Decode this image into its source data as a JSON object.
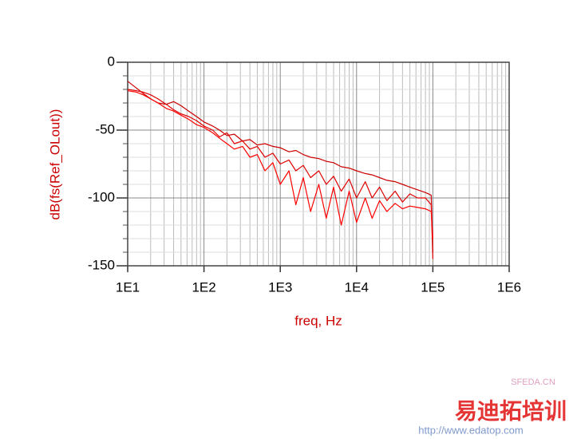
{
  "chart_data": {
    "type": "line",
    "xlabel": "freq, Hz",
    "ylabel": "dB(fs(Ref_OLout))",
    "xscale": "log",
    "grid": true,
    "xlim": [
      10,
      1000000
    ],
    "xticks": [
      {
        "value": 10,
        "label": "1E1"
      },
      {
        "value": 100,
        "label": "1E2"
      },
      {
        "value": 1000,
        "label": "1E3"
      },
      {
        "value": 10000,
        "label": "1E4"
      },
      {
        "value": 100000,
        "label": "1E5"
      },
      {
        "value": 1000000,
        "label": "1E6"
      }
    ],
    "xminorticks": [
      20,
      30,
      40,
      50,
      60,
      70,
      80,
      90,
      200,
      300,
      400,
      500,
      600,
      700,
      800,
      900,
      2000,
      3000,
      4000,
      5000,
      6000,
      7000,
      8000,
      9000,
      20000,
      30000,
      40000,
      50000,
      60000,
      70000,
      80000,
      90000,
      200000,
      300000,
      400000,
      500000,
      600000,
      700000,
      800000,
      900000
    ],
    "ylim": [
      -150,
      0
    ],
    "yticks": [
      0,
      -50,
      -100,
      -150
    ],
    "yminorticks": [
      -10,
      -20,
      -30,
      -40,
      -60,
      -70,
      -80,
      -90,
      -110,
      -120,
      -130,
      -140
    ],
    "x": [
      10,
      13,
      16,
      20,
      25,
      32,
      40,
      50,
      63,
      80,
      100,
      130,
      160,
      200,
      250,
      320,
      400,
      500,
      630,
      800,
      1000,
      1300,
      1600,
      2000,
      2500,
      3200,
      4000,
      5000,
      6300,
      8000,
      10000,
      13000,
      16000,
      20000,
      25000,
      32000,
      40000,
      50000,
      63000,
      80000,
      95000,
      100000
    ],
    "series": [
      {
        "color": "#cc0000",
        "values": [
          -14,
          -19,
          -23,
          -27,
          -30,
          -31,
          -29,
          -32,
          -36,
          -40,
          -44,
          -47,
          -50,
          -54,
          -53,
          -58,
          -57,
          -61,
          -60,
          -62,
          -63,
          -66,
          -65,
          -68,
          -70,
          -71,
          -73,
          -74,
          -77,
          -78,
          -80,
          -82,
          -83,
          -85,
          -87,
          -88,
          -90,
          -92,
          -94,
          -96,
          -98,
          -140
        ]
      },
      {
        "color": "#e00000",
        "values": [
          -20,
          -21,
          -22,
          -24,
          -27,
          -31,
          -35,
          -38,
          -40,
          -43,
          -47,
          -50,
          -55,
          -52,
          -60,
          -58,
          -64,
          -62,
          -70,
          -67,
          -75,
          -72,
          -80,
          -76,
          -85,
          -80,
          -90,
          -84,
          -95,
          -86,
          -100,
          -88,
          -100,
          -92,
          -102,
          -95,
          -103,
          -97,
          -100,
          -100,
          -105,
          -145
        ]
      },
      {
        "color": "#ff0000",
        "values": [
          -21,
          -22,
          -24,
          -27,
          -30,
          -34,
          -36,
          -39,
          -42,
          -46,
          -48,
          -52,
          -56,
          -60,
          -64,
          -62,
          -70,
          -68,
          -80,
          -74,
          -90,
          -80,
          -105,
          -85,
          -110,
          -90,
          -115,
          -92,
          -120,
          -95,
          -118,
          -100,
          -115,
          -102,
          -110,
          -104,
          -108,
          -106,
          -107,
          -108,
          -110,
          -130
        ]
      }
    ]
  },
  "watermark": {
    "site": "SFEDA.CN",
    "brand": "易迪拓培训",
    "url": "http://www.edatop.com"
  }
}
